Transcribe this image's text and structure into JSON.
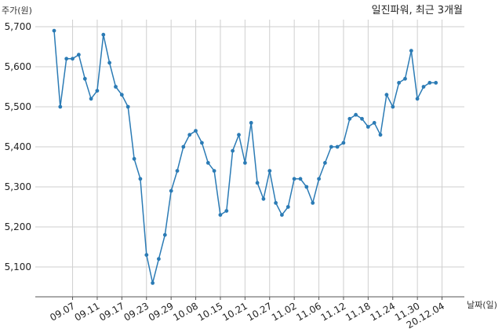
{
  "chart_data": {
    "type": "line",
    "title": "일진파워, 최근 3개월",
    "ylabel": "주가(원)",
    "xlabel": "날짜(일)",
    "ylim": [
      5040,
      5720
    ],
    "yticks": [
      5100,
      5200,
      5300,
      5400,
      5500,
      5600,
      5700
    ],
    "ytick_labels": [
      "5,100",
      "5,200",
      "5,300",
      "5,400",
      "5,500",
      "5,600",
      "5,700"
    ],
    "xticks": [
      "09.07",
      "09.11",
      "09.17",
      "09.23",
      "09.29",
      "10.08",
      "10.15",
      "10.21",
      "10.27",
      "11.02",
      "11.06",
      "11.12",
      "11.18",
      "11.24",
      "11.30",
      "20.12.04"
    ],
    "xtick_index": [
      3,
      7,
      11,
      15,
      19,
      23,
      27,
      31,
      35,
      39,
      43,
      47,
      51,
      55,
      59,
      63
    ],
    "grid": true,
    "color": "#2b7bb5",
    "series": [
      {
        "values": [
          5690,
          5500,
          5620,
          5620,
          5630,
          5570,
          5520,
          5540,
          5680,
          5610,
          5550,
          5530,
          5500,
          5370,
          5320,
          5130,
          5060,
          5120,
          5180,
          5290,
          5340,
          5400,
          5430,
          5440,
          5410,
          5360,
          5340,
          5230,
          5240,
          5390,
          5430,
          5360,
          5460,
          5310,
          5270,
          5340,
          5260,
          5230,
          5250,
          5320,
          5320,
          5300,
          5260,
          5320,
          5360,
          5400,
          5400,
          5410,
          5470,
          5480,
          5470,
          5450,
          5460,
          5430,
          5530,
          5500,
          5560,
          5570,
          5640,
          5520,
          5550,
          5560,
          5560
        ]
      }
    ]
  }
}
